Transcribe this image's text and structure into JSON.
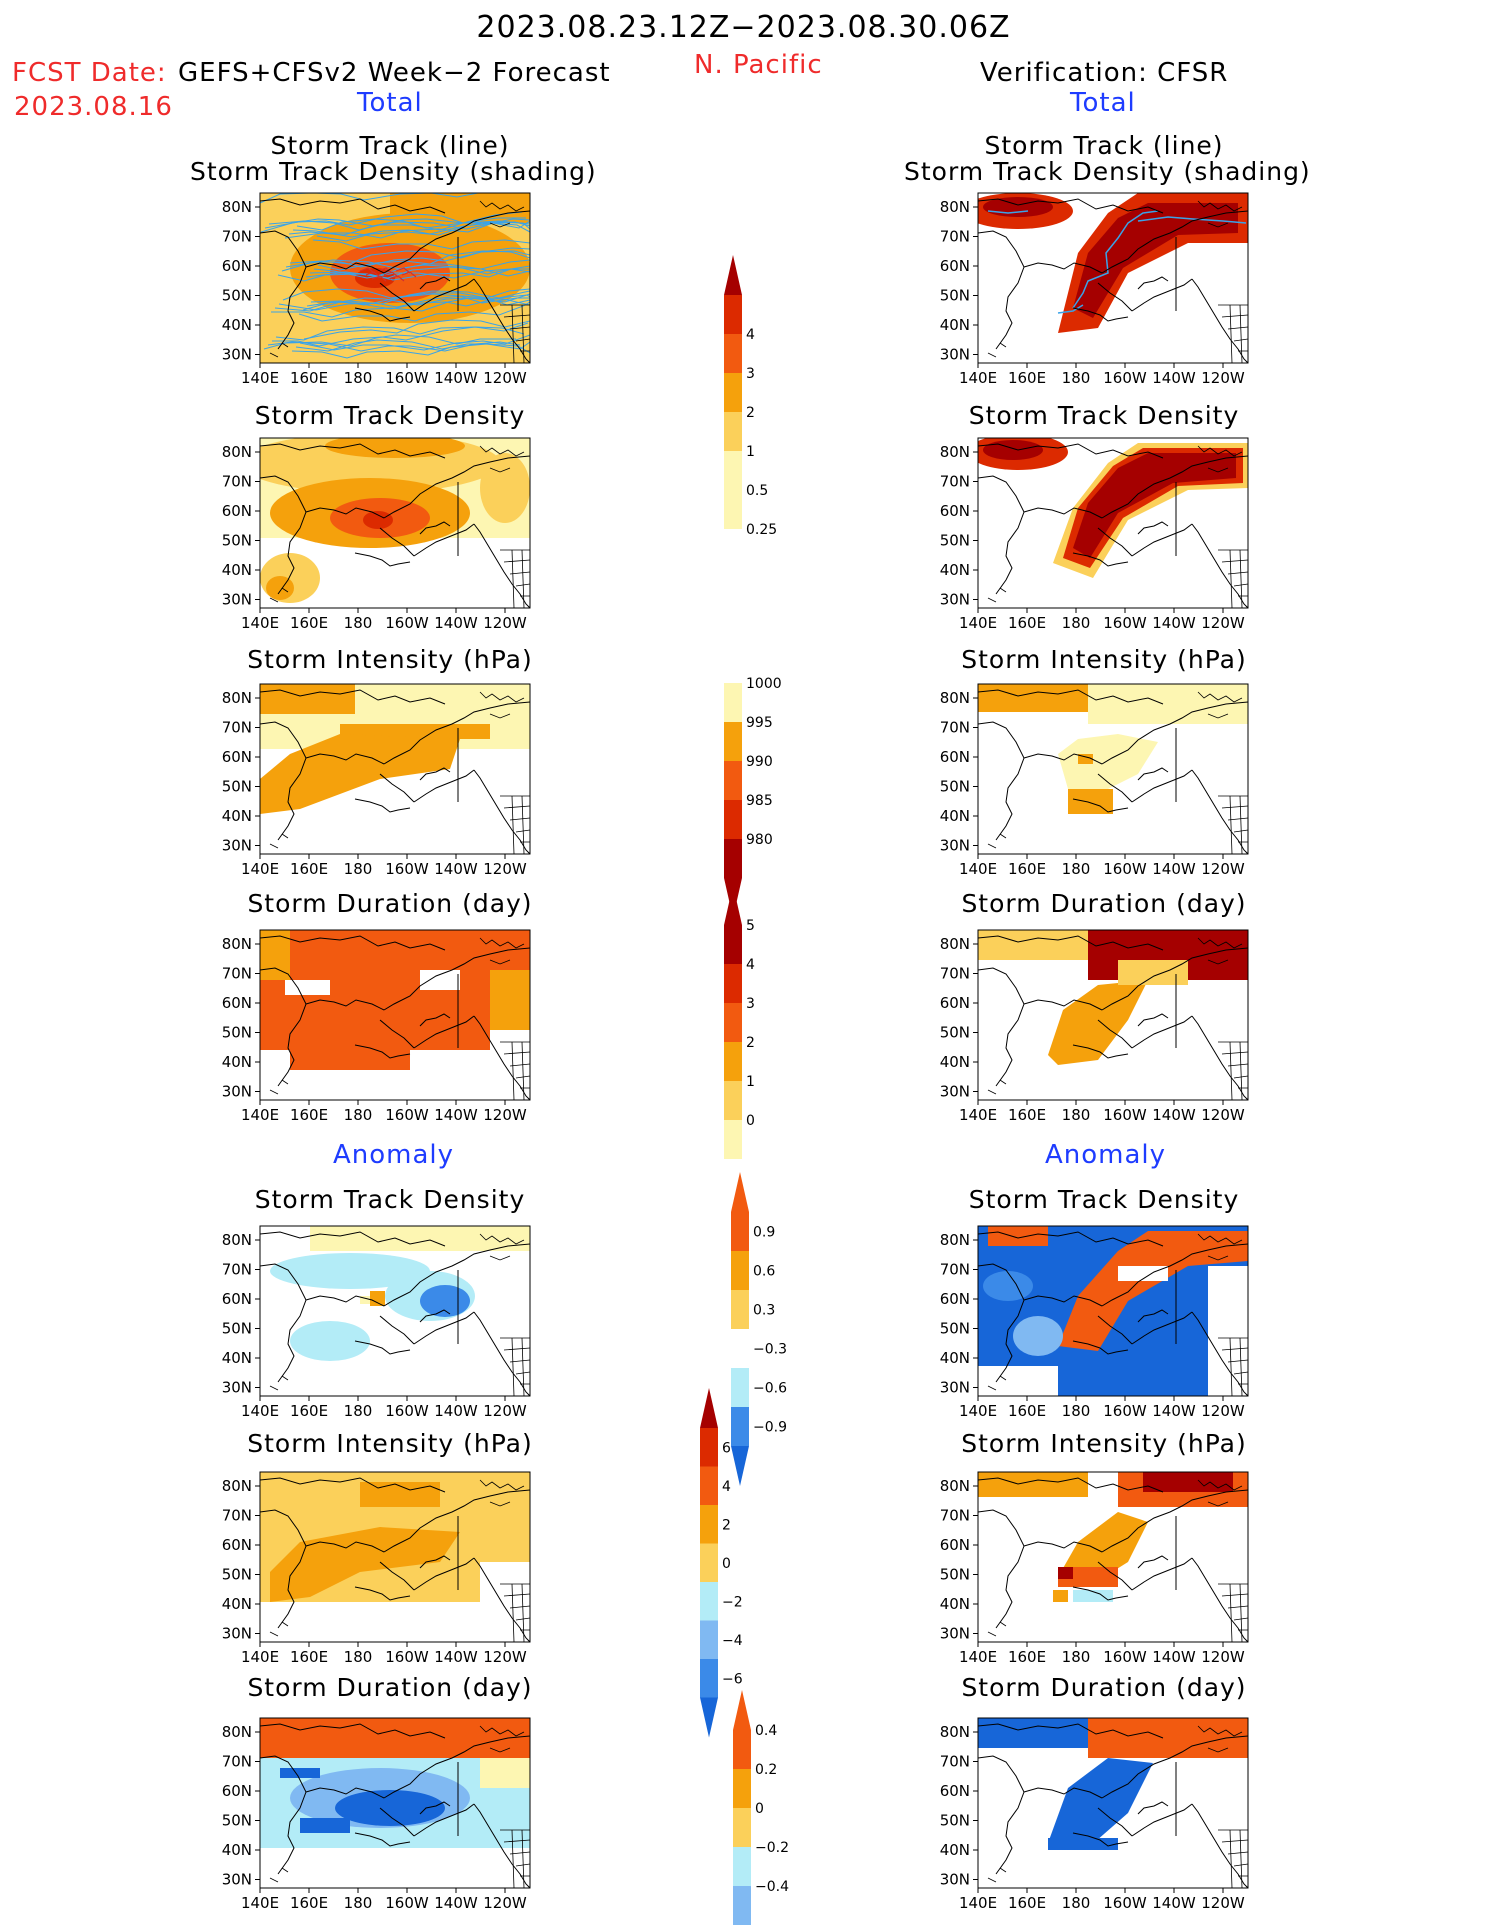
{
  "header": {
    "title": "2023.08.23.12Z−2023.08.30.06Z",
    "fcst_label": "FCST Date:",
    "fcst_model": "GEFS+CFSv2 Week−2 Forecast",
    "fcst_date": "2023.08.16",
    "region": "N. Pacific",
    "verification": "Verification: CFSR"
  },
  "sections": {
    "total": "Total",
    "anomaly": "Anomaly"
  },
  "panel_titles": {
    "track_line": "Storm Track (line)",
    "track_shading": "Storm Track Density (shading)",
    "density": "Storm Track Density",
    "intensity": "Storm Intensity (hPa)",
    "duration": "Storm Duration (day)"
  },
  "axes": {
    "lat_labels": [
      "80N",
      "70N",
      "60N",
      "50N",
      "40N",
      "30N"
    ],
    "lon_labels": [
      "140E",
      "160E",
      "180",
      "160W",
      "140W",
      "120W"
    ]
  },
  "colorbars": {
    "track_density": [
      "4",
      "3",
      "2",
      "1",
      "0.5",
      "0.25"
    ],
    "intensity": [
      "1000",
      "995",
      "990",
      "985",
      "980"
    ],
    "duration": [
      "5",
      "4",
      "3",
      "2",
      "1",
      "0"
    ],
    "density_anomaly": [
      "0.9",
      "0.6",
      "0.3",
      "−0.3",
      "−0.6",
      "−0.9"
    ],
    "intensity_anomaly": [
      "6",
      "4",
      "2",
      "0",
      "−2",
      "−4",
      "−6"
    ],
    "duration_anomaly": [
      "0.4",
      "0.2",
      "0",
      "−0.2",
      "−0.4"
    ]
  },
  "colors": {
    "dark_red": "#a50000",
    "red": "#dc2a00",
    "red_orange": "#f25a10",
    "orange": "#f5a10c",
    "light_orange": "#fbd05a",
    "pale_yellow": "#fdf6b2",
    "light_blue": "#b3ecf7",
    "mid_blue": "#80b9f2",
    "blue": "#3b8ae8",
    "dark_blue": "#1766d8",
    "track_line": "#3aa3e8",
    "header_red": "#ef2b2b",
    "header_blue": "#1e3cff"
  }
}
